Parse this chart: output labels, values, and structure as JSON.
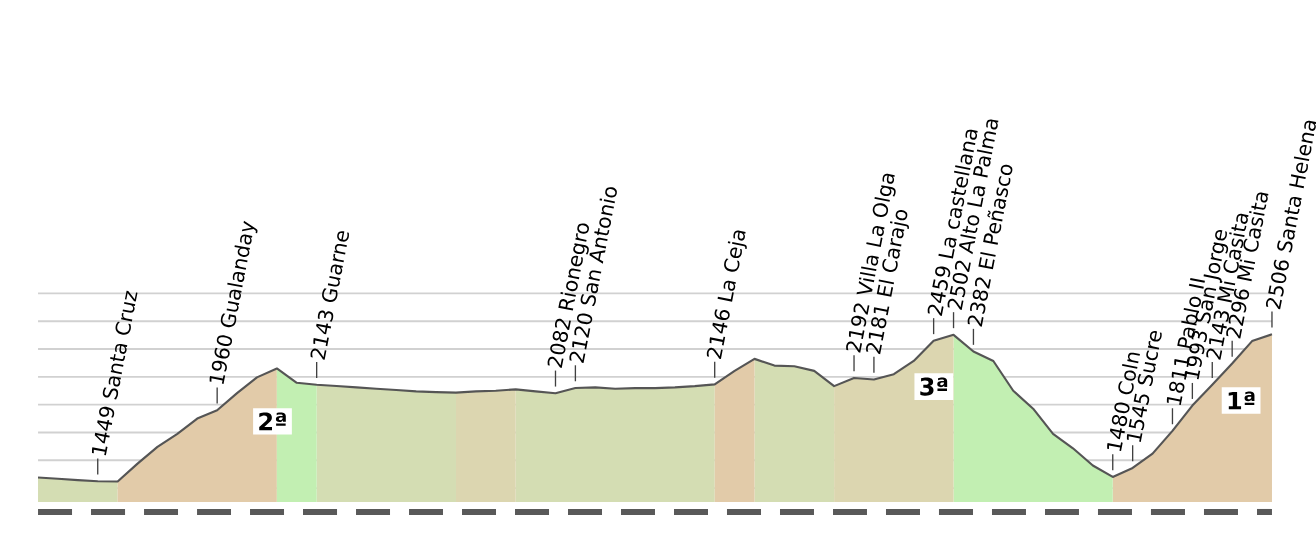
{
  "chart_data": {
    "type": "line",
    "categories": [
      null,
      null,
      null,
      null,
      null,
      null,
      null,
      null,
      null,
      null,
      null,
      null,
      null,
      null,
      null,
      null,
      null,
      null,
      null,
      null,
      null,
      null,
      null,
      null,
      null,
      null,
      null,
      null,
      null,
      null,
      null,
      null,
      null,
      null,
      null,
      null,
      null,
      null,
      null,
      null,
      null,
      null,
      null,
      null,
      null,
      null,
      null,
      null,
      null,
      null,
      null,
      null,
      null,
      null,
      null,
      null,
      null,
      null,
      null,
      null,
      null,
      null,
      null
    ],
    "yticks": [
      {
        "value": 1400,
        "label": null
      },
      {
        "value": 1600,
        "label": null
      },
      {
        "value": 1800,
        "label": null
      },
      {
        "value": 2000,
        "label": null
      },
      {
        "value": 2200,
        "label": null
      },
      {
        "value": 2400,
        "label": null
      },
      {
        "value": 2600,
        "label": null
      },
      {
        "value": 2800,
        "label": null
      }
    ],
    "grid": "y",
    "series": [
      {
        "type": "area",
        "color": "#d4ddb3",
        "values": [
          1476,
          1467,
          1457,
          1449,
          1447,
          null,
          null,
          null,
          null,
          null,
          null,
          null,
          null,
          null,
          2143,
          2134,
          2124,
          2114,
          2105,
          2095,
          2090,
          2086,
          null,
          null,
          2110,
          2095,
          2082,
          2120,
          2124,
          2114,
          2119,
          2119,
          2124,
          2133,
          2146,
          null,
          2329,
          2281,
          2276,
          2243,
          2133,
          null,
          null,
          null,
          null,
          null,
          null,
          null,
          null,
          null,
          null,
          null,
          null,
          null,
          null,
          null,
          null,
          null,
          null,
          null,
          null,
          null,
          null
        ]
      },
      {
        "type": "area",
        "color": "#e2cba9",
        "values": [
          null,
          null,
          null,
          null,
          1447,
          1576,
          1696,
          1790,
          1900,
          1960,
          2083,
          2196,
          2260,
          null,
          null,
          null,
          null,
          null,
          null,
          null,
          null,
          null,
          null,
          null,
          null,
          null,
          null,
          null,
          null,
          null,
          null,
          null,
          null,
          null,
          2146,
          2243,
          2329,
          null,
          null,
          null,
          null,
          null,
          null,
          null,
          null,
          null,
          null,
          null,
          null,
          null,
          null,
          null,
          null,
          null,
          1480,
          1545,
          1648,
          1811,
          1993,
          2143,
          2296,
          2457,
          2506
        ]
      },
      {
        "type": "area",
        "color": "#c2efb2",
        "values": [
          null,
          null,
          null,
          null,
          null,
          null,
          null,
          null,
          null,
          null,
          null,
          null,
          2260,
          2157,
          2143,
          null,
          null,
          null,
          null,
          null,
          null,
          null,
          null,
          null,
          null,
          null,
          null,
          null,
          null,
          null,
          null,
          null,
          null,
          null,
          null,
          null,
          null,
          null,
          null,
          null,
          null,
          null,
          null,
          null,
          null,
          null,
          2502,
          2382,
          2314,
          2100,
          1971,
          1790,
          1686,
          1562,
          1480,
          null,
          null,
          null,
          null,
          null,
          null,
          null,
          null
        ]
      },
      {
        "type": "area",
        "color": "#dcd6b0",
        "values": [
          null,
          null,
          null,
          null,
          null,
          null,
          null,
          null,
          null,
          null,
          null,
          null,
          null,
          null,
          null,
          null,
          null,
          null,
          null,
          null,
          null,
          2086,
          2095,
          2100,
          2110,
          null,
          null,
          null,
          null,
          null,
          null,
          null,
          null,
          null,
          null,
          null,
          null,
          null,
          null,
          null,
          2133,
          2192,
          2181,
          2219,
          2314,
          2459,
          2502,
          null,
          null,
          null,
          null,
          null,
          null,
          null,
          null,
          null,
          null,
          null,
          null,
          null,
          null,
          null,
          null
        ]
      },
      {
        "color": "#555555",
        "values": [
          1476,
          1467,
          1457,
          1449,
          1447,
          1576,
          1696,
          1790,
          1900,
          1960,
          2083,
          2196,
          2260,
          2157,
          2143,
          2134,
          2124,
          2114,
          2105,
          2095,
          2090,
          2086,
          2095,
          2100,
          2110,
          2095,
          2082,
          2120,
          2124,
          2114,
          2119,
          2119,
          2124,
          2133,
          2146,
          2243,
          2329,
          2281,
          2276,
          2243,
          2133,
          2192,
          2181,
          2219,
          2314,
          2459,
          2502,
          2382,
          2314,
          2100,
          1971,
          1790,
          1686,
          1562,
          1480,
          1545,
          1648,
          1811,
          1993,
          2143,
          2296,
          2457,
          2506
        ],
        "value_labels": [
          null,
          null,
          null,
          "1449 Santa Cruz",
          null,
          null,
          null,
          null,
          null,
          "1960 Gualanday",
          null,
          null,
          null,
          null,
          "2143 Guarne",
          null,
          null,
          null,
          null,
          null,
          null,
          null,
          null,
          null,
          null,
          null,
          "2082 Rionegro",
          "2120 San Antonio",
          null,
          null,
          null,
          null,
          null,
          null,
          "2146 La Ceja",
          null,
          null,
          null,
          null,
          null,
          null,
          "2192 Villa La Olga",
          "2181 El Carajo",
          null,
          null,
          "2459 La castellana",
          "2502 Alto La Palma",
          "2382 El Peñasco",
          null,
          null,
          null,
          null,
          null,
          null,
          "1480 Coln",
          "1545 Sucre",
          null,
          "1811 Pablo II",
          "1993 San Jorge",
          "2143 Mi Casita",
          "2296 Mi Casita",
          null,
          "2506 Santa Helena"
        ]
      }
    ],
    "annotations": [
      "2ª",
      "3ª",
      "1ª"
    ]
  }
}
